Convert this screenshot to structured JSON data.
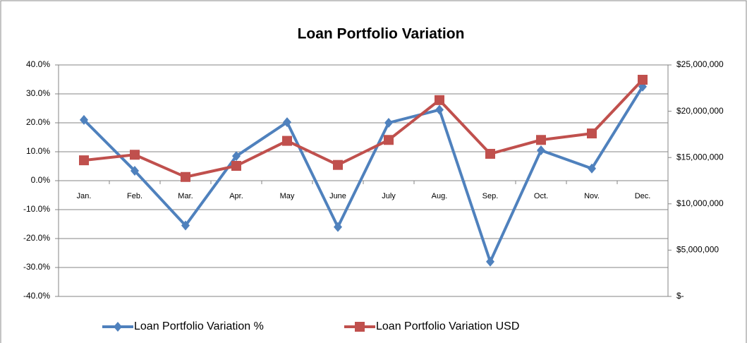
{
  "chart_data": {
    "type": "line",
    "title": "Loan Portfolio Variation",
    "categories": [
      "Jan.",
      "Feb.",
      "Mar.",
      "Apr.",
      "May",
      "June",
      "July",
      "Aug.",
      "Sep.",
      "Oct.",
      "Nov.",
      "Dec."
    ],
    "series": [
      {
        "name": "Loan Portfolio Variation %",
        "color": "#4f81bd",
        "marker": "diamond",
        "values": [
          21,
          3.4,
          -15.5,
          8.5,
          20.2,
          -16,
          20,
          24.5,
          -28,
          10.5,
          4.2,
          32.5
        ]
      },
      {
        "name": "Loan Portfolio Variation USD",
        "color": "#c0504d",
        "marker": "square",
        "axis": "y2",
        "values": [
          14700000,
          15300000,
          12900000,
          14100000,
          16800000,
          14200000,
          16900000,
          21200000,
          15400000,
          16900000,
          17600000,
          23400000
        ]
      }
    ],
    "ylim": [
      -40,
      40
    ],
    "yticks": [
      {
        "value": 40,
        "label": "40.0%"
      },
      {
        "value": 30,
        "label": "30.0%"
      },
      {
        "value": 20,
        "label": "20.0%"
      },
      {
        "value": 10,
        "label": "10.0%"
      },
      {
        "value": 0,
        "label": "0.0%"
      },
      {
        "value": -10,
        "label": "-10.0%"
      },
      {
        "value": -20,
        "label": "-20.0%"
      },
      {
        "value": -30,
        "label": "-30.0%"
      },
      {
        "value": -40,
        "label": "-40.0%"
      }
    ],
    "y2lim": [
      0,
      25000000
    ],
    "y2ticks": [
      {
        "value": 25000000,
        "label": "$25,000,000"
      },
      {
        "value": 20000000,
        "label": "$20,000,000"
      },
      {
        "value": 15000000,
        "label": "$15,000,000"
      },
      {
        "value": 10000000,
        "label": "$10,000,000"
      },
      {
        "value": 5000000,
        "label": "$5,000,000"
      },
      {
        "value": 0,
        "label": "$-"
      }
    ],
    "grid": true,
    "legend": "bottom"
  }
}
